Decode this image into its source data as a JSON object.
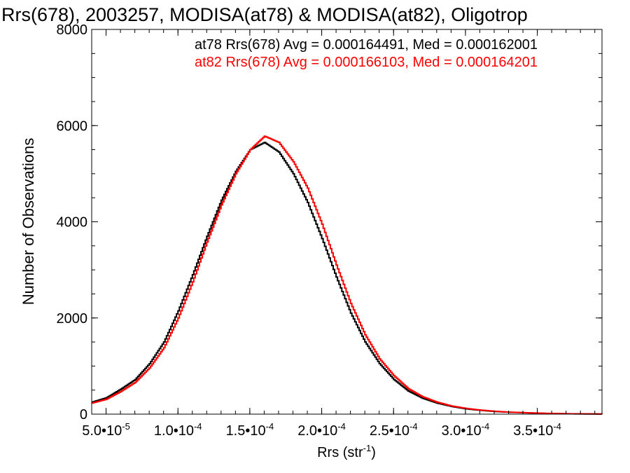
{
  "chart_data": {
    "type": "histogram",
    "title": "Rrs(678), 2003257, MODISA(at78) & MODISA(at82), Oligotrop",
    "xlabel": "Rrs (str",
    "xlabel_sup": "-1",
    "xlabel_close": ")",
    "ylabel": "Number of Observations",
    "xlim": [
      4e-05,
      0.000395
    ],
    "ylim": [
      0,
      8000
    ],
    "xticks": [
      {
        "value": 5e-05,
        "label": "5.0•10",
        "exp": "-5"
      },
      {
        "value": 0.0001,
        "label": "1.0•10",
        "exp": "-4"
      },
      {
        "value": 0.00015,
        "label": "1.5•10",
        "exp": "-4"
      },
      {
        "value": 0.0002,
        "label": "2.0•10",
        "exp": "-4"
      },
      {
        "value": 0.00025,
        "label": "2.5•10",
        "exp": "-4"
      },
      {
        "value": 0.0003,
        "label": "3.0•10",
        "exp": "-4"
      },
      {
        "value": 0.00035,
        "label": "3.5•10",
        "exp": "-4"
      }
    ],
    "yticks": [
      0,
      2000,
      4000,
      6000,
      8000
    ],
    "stats": [
      {
        "text": "at78 Rrs(678) Avg = 0.000164491, Med = 0.000162001",
        "color": "#000000"
      },
      {
        "text": "at82 Rrs(678) Avg = 0.000166103, Med = 0.000164201",
        "color": "#ff0000"
      }
    ],
    "series": [
      {
        "color": "#000000",
        "points": [
          [
            4e-05,
            250
          ],
          [
            5e-05,
            340
          ],
          [
            6e-05,
            520
          ],
          [
            7e-05,
            720
          ],
          [
            8e-05,
            1050
          ],
          [
            9e-05,
            1500
          ],
          [
            0.0001,
            2150
          ],
          [
            0.00011,
            2900
          ],
          [
            0.00012,
            3700
          ],
          [
            0.00013,
            4450
          ],
          [
            0.00014,
            5050
          ],
          [
            0.00015,
            5500
          ],
          [
            0.00016,
            5650
          ],
          [
            0.00017,
            5450
          ],
          [
            0.00018,
            5000
          ],
          [
            0.00019,
            4400
          ],
          [
            0.0002,
            3650
          ],
          [
            0.00021,
            2850
          ],
          [
            0.00022,
            2100
          ],
          [
            0.00023,
            1500
          ],
          [
            0.00024,
            1050
          ],
          [
            0.00025,
            720
          ],
          [
            0.00026,
            480
          ],
          [
            0.00027,
            330
          ],
          [
            0.00028,
            230
          ],
          [
            0.00029,
            160
          ],
          [
            0.0003,
            110
          ],
          [
            0.00031,
            80
          ],
          [
            0.00032,
            55
          ],
          [
            0.00033,
            40
          ],
          [
            0.00034,
            30
          ],
          [
            0.00035,
            20
          ],
          [
            0.00036,
            12
          ],
          [
            0.00037,
            8
          ],
          [
            0.00038,
            5
          ],
          [
            0.00039,
            3
          ],
          [
            0.000395,
            2
          ]
        ]
      },
      {
        "color": "#ff0000",
        "points": [
          [
            4e-05,
            230
          ],
          [
            5e-05,
            310
          ],
          [
            6e-05,
            470
          ],
          [
            7e-05,
            660
          ],
          [
            8e-05,
            960
          ],
          [
            9e-05,
            1380
          ],
          [
            0.0001,
            2000
          ],
          [
            0.00011,
            2750
          ],
          [
            0.00012,
            3580
          ],
          [
            0.00013,
            4350
          ],
          [
            0.00014,
            5000
          ],
          [
            0.00015,
            5500
          ],
          [
            0.00016,
            5780
          ],
          [
            0.00017,
            5650
          ],
          [
            0.00018,
            5250
          ],
          [
            0.00019,
            4700
          ],
          [
            0.0002,
            3950
          ],
          [
            0.00021,
            3100
          ],
          [
            0.00022,
            2300
          ],
          [
            0.00023,
            1650
          ],
          [
            0.00024,
            1150
          ],
          [
            0.00025,
            800
          ],
          [
            0.00026,
            530
          ],
          [
            0.00027,
            360
          ],
          [
            0.00028,
            250
          ],
          [
            0.00029,
            170
          ],
          [
            0.0003,
            120
          ],
          [
            0.00031,
            85
          ],
          [
            0.00032,
            60
          ],
          [
            0.00033,
            42
          ],
          [
            0.00034,
            32
          ],
          [
            0.00035,
            22
          ],
          [
            0.00036,
            14
          ],
          [
            0.00037,
            9
          ],
          [
            0.00038,
            6
          ],
          [
            0.00039,
            4
          ],
          [
            0.000395,
            2
          ]
        ]
      }
    ]
  }
}
